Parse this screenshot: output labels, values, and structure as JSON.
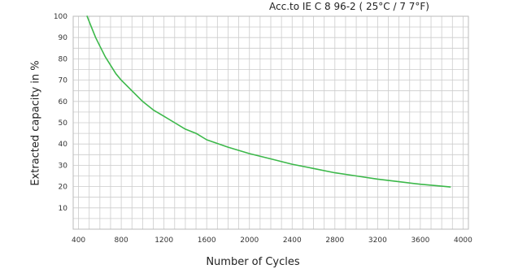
{
  "chart_data": {
    "type": "line",
    "title": "Acc.to IE C 8 96-2 ( 25°C / 7 7°F)",
    "xlabel": "Number of Cycles",
    "ylabel": "Extracted capacity in %",
    "xlim": [
      350,
      4050
    ],
    "ylim": [
      0,
      100
    ],
    "xticks": [
      400,
      800,
      1200,
      1600,
      2000,
      2400,
      2800,
      3200,
      3600,
      4000
    ],
    "yticks": [
      10,
      20,
      30,
      40,
      50,
      60,
      70,
      80,
      90,
      100
    ],
    "grid": true,
    "line_color": "#3cb84a",
    "series": [
      {
        "x": [
          480,
          520,
          560,
          600,
          650,
          700,
          750,
          800,
          900,
          1000,
          1100,
          1200,
          1300,
          1400,
          1500,
          1600,
          1800,
          2000,
          2200,
          2400,
          2600,
          2800,
          3000,
          3200,
          3400,
          3600,
          3800,
          3880
        ],
        "y": [
          100,
          95,
          90,
          86,
          81,
          77,
          73,
          70,
          65,
          60,
          56,
          53,
          50,
          47,
          45,
          42,
          38.5,
          35.5,
          33,
          30.5,
          28.5,
          26.5,
          25,
          23.5,
          22.3,
          21.1,
          20.2,
          19.8
        ]
      }
    ]
  }
}
